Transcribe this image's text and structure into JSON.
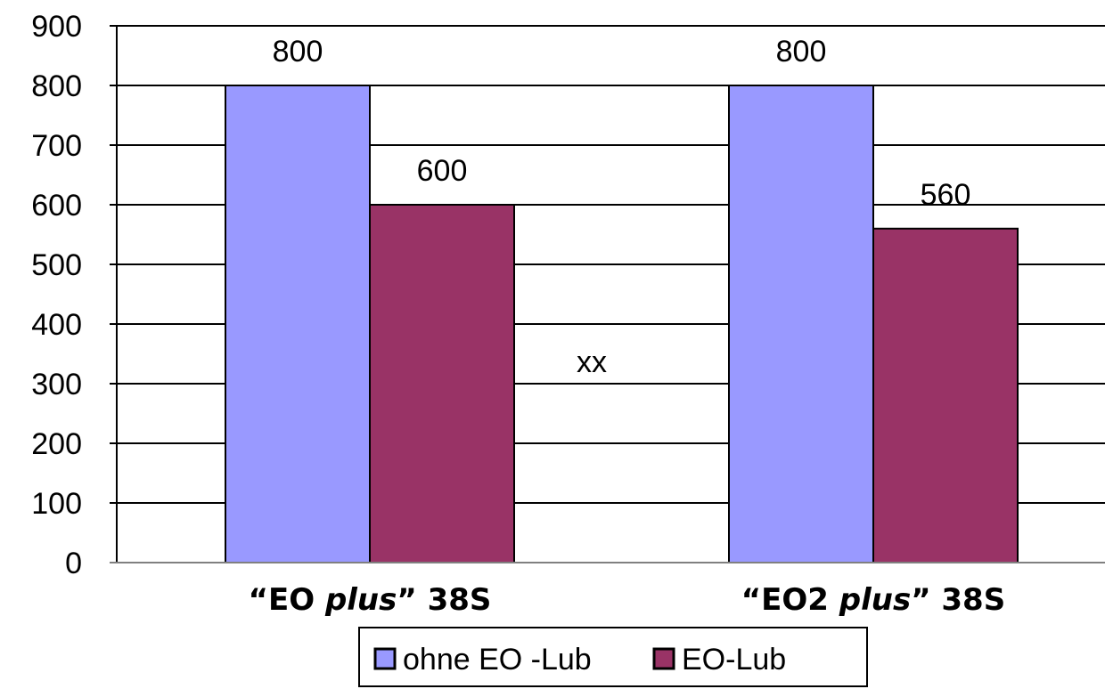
{
  "chart_data": {
    "type": "bar",
    "categories": [
      {
        "open_quote": "“",
        "pre": "EO ",
        "italic": "plus",
        "close_quote": "”",
        "post": " 38S"
      },
      {
        "open_quote": "“",
        "pre": "EO2 ",
        "italic": "plus",
        "close_quote": "”",
        "post": " 38S"
      }
    ],
    "series": [
      {
        "name": "ohne EO -Lub",
        "color": "#9999ff",
        "values": [
          800,
          800
        ]
      },
      {
        "name": "EO-Lub",
        "color": "#993366",
        "values": [
          600,
          560
        ]
      }
    ],
    "ylim": [
      0,
      900
    ],
    "yticks": [
      0,
      100,
      200,
      300,
      400,
      500,
      600,
      700,
      800,
      900
    ],
    "data_labels": true,
    "grid": true,
    "annotation": "xx",
    "legend_position": "bottom"
  }
}
